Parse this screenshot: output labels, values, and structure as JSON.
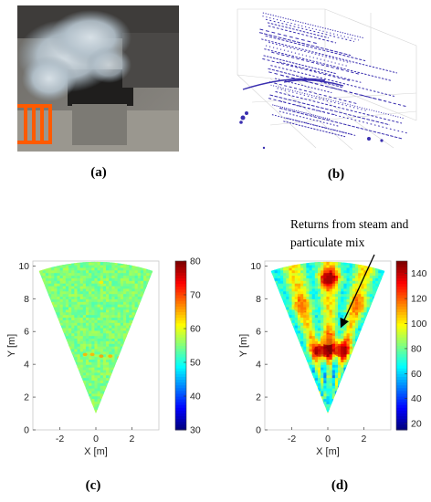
{
  "captions": {
    "a": "(a)",
    "b": "(b)",
    "c": "(c)",
    "d": "(d)"
  },
  "annotation": {
    "line1": "Returns from steam and",
    "line2": "particulate mix"
  },
  "chart_data": [
    {
      "type": "heatmap",
      "panel": "c",
      "xlabel": "X [m]",
      "ylabel": "Y [m]",
      "xlim": [
        -3.5,
        3.5
      ],
      "ylim": [
        0,
        10.3
      ],
      "xticks": [
        "-2",
        "0",
        "2"
      ],
      "yticks": [
        "0",
        "2",
        "4",
        "6",
        "8",
        "10"
      ],
      "colorbar": {
        "min": 30,
        "max": 80,
        "ticks": [
          "80",
          "70",
          "60",
          "50",
          "40",
          "30"
        ]
      },
      "shape": "fan sector, apex at (0, 1), outer radius ~9.2 m",
      "dominant_value": 55,
      "hotspots": [
        {
          "x": -0.6,
          "y": 4.6,
          "value": 65
        },
        {
          "x": -0.2,
          "y": 4.6,
          "value": 65
        },
        {
          "x": 0.3,
          "y": 4.5,
          "value": 66
        },
        {
          "x": 0.8,
          "y": 4.5,
          "value": 65
        },
        {
          "x": 1.3,
          "y": 4.4,
          "value": 64
        },
        {
          "x": 0.3,
          "y": 9.0,
          "value": 62
        }
      ]
    },
    {
      "type": "heatmap",
      "panel": "d",
      "xlabel": "X [m]",
      "ylabel": "Y [m]",
      "xlim": [
        -3.5,
        3.5
      ],
      "ylim": [
        0,
        10.3
      ],
      "xticks": [
        "-2",
        "0",
        "2"
      ],
      "yticks": [
        "0",
        "2",
        "4",
        "6",
        "8",
        "10"
      ],
      "colorbar": {
        "min": 15,
        "max": 150,
        "ticks": [
          "140",
          "120",
          "100",
          "80",
          "60",
          "40",
          "20"
        ]
      },
      "shape": "fan sector, apex at (0, 1), outer radius ~9.2 m",
      "dominant_value": 100,
      "hotspots": [
        {
          "x": -0.4,
          "y": 4.8,
          "value": 145
        },
        {
          "x": 0.7,
          "y": 4.8,
          "value": 140
        },
        {
          "x": 0.0,
          "y": 5.5,
          "value": 110
        },
        {
          "x": 0.0,
          "y": 9.2,
          "value": 140
        },
        {
          "x": -1.5,
          "y": 7.5,
          "value": 110
        },
        {
          "x": 1.6,
          "y": 7.5,
          "value": 110
        }
      ]
    }
  ]
}
